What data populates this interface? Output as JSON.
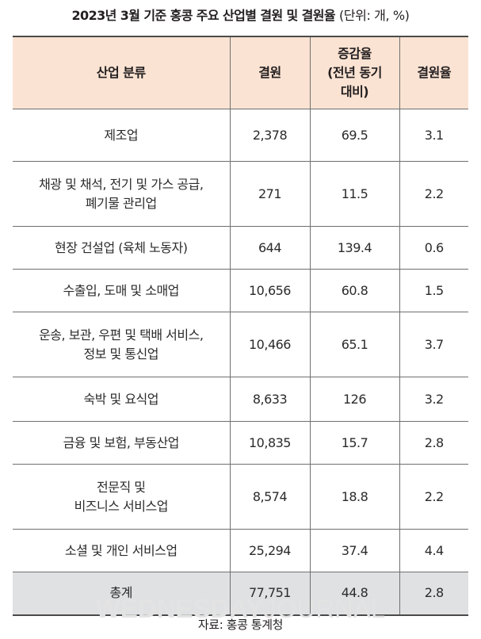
{
  "title": {
    "main": "2023년 3월 기준 홍콩 주요 산업별 결원 및 결원율",
    "unit": "(단위: 개, %)"
  },
  "table": {
    "headers": {
      "industry": "산업 분류",
      "vacancies": "결원",
      "change_line1": "증감율",
      "change_line2": "(전년 동기",
      "change_line3": "대비)",
      "rate": "결원율"
    },
    "rows": [
      {
        "industry_line1": "제조업",
        "industry_line2": "",
        "vacancies": "2,378",
        "change": "69.5",
        "rate": "3.1"
      },
      {
        "industry_line1": "채광 및 채석, 전기 및 가스 공급,",
        "industry_line2": "폐기물 관리업",
        "vacancies": "271",
        "change": "11.5",
        "rate": "2.2"
      },
      {
        "industry_line1": "현장 건설업 (육체 노동자)",
        "industry_line2": "",
        "vacancies": "644",
        "change": "139.4",
        "rate": "0.6"
      },
      {
        "industry_line1": "수출입, 도매 및 소매업",
        "industry_line2": "",
        "vacancies": "10,656",
        "change": "60.8",
        "rate": "1.5"
      },
      {
        "industry_line1": "운송, 보관, 우편 및 택배 서비스,",
        "industry_line2": "정보 및 통신업",
        "vacancies": "10,466",
        "change": "65.1",
        "rate": "3.7"
      },
      {
        "industry_line1": "숙박 및 요식업",
        "industry_line2": "",
        "vacancies": "8,633",
        "change": "126",
        "rate": "3.2"
      },
      {
        "industry_line1": "금융 및 보험, 부동산업",
        "industry_line2": "",
        "vacancies": "10,835",
        "change": "15.7",
        "rate": "2.8"
      },
      {
        "industry_line1": "전문직 및",
        "industry_line2": "비즈니스 서비스업",
        "vacancies": "8,574",
        "change": "18.8",
        "rate": "2.2"
      },
      {
        "industry_line1": "소셜 및 개인 서비스업",
        "industry_line2": "",
        "vacancies": "25,294",
        "change": "37.4",
        "rate": "4.4"
      }
    ],
    "total": {
      "label": "총계",
      "vacancies": "77,751",
      "change": "44.8",
      "rate": "2.8"
    }
  },
  "watermark": {
    "bold": "WEDNESDAY",
    "light": "JOURNAL"
  },
  "source": "자료: 홍콩 통계청",
  "colors": {
    "header_background": "#fbe3d3",
    "total_background": "#e0e1e3",
    "rule": "#4a4a4a"
  }
}
